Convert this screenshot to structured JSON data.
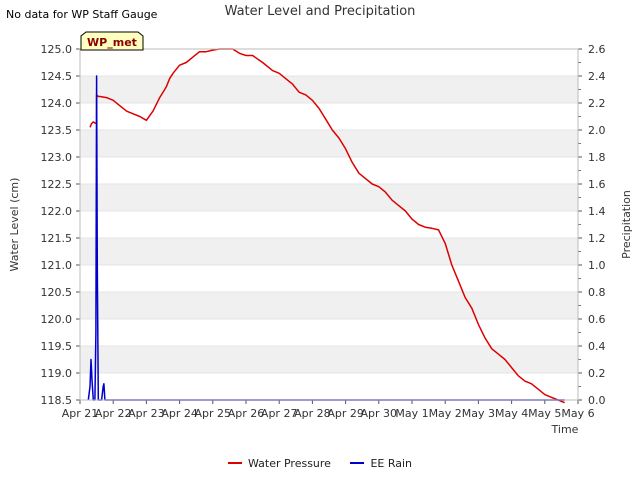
{
  "header": {
    "status_text": "No data for WP Staff Gauge"
  },
  "chart_data": {
    "type": "line",
    "title": "Water Level and Precipitation",
    "xlabel": "Time",
    "ylabel_left": "Water Level (cm)",
    "ylabel_right": "Precipitation",
    "ylim_left": [
      118.5,
      125.0
    ],
    "ylim_right": [
      0.0,
      2.6
    ],
    "x_ticks": [
      "Apr 21",
      "Apr 22",
      "Apr 23",
      "Apr 24",
      "Apr 25",
      "Apr 26",
      "Apr 27",
      "Apr 28",
      "Apr 29",
      "Apr 30",
      "May 1",
      "May 2",
      "May 3",
      "May 4",
      "May 5",
      "May 6"
    ],
    "y_ticks_left": [
      "118.5",
      "119.0",
      "119.5",
      "120.0",
      "120.5",
      "121.0",
      "121.5",
      "122.0",
      "122.5",
      "123.0",
      "123.5",
      "124.0",
      "124.5",
      "125.0"
    ],
    "y_ticks_right": [
      "0.0",
      "0.2",
      "0.4",
      "0.6",
      "0.8",
      "1.0",
      "1.2",
      "1.4",
      "1.6",
      "1.8",
      "2.0",
      "2.2",
      "2.4",
      "2.6"
    ],
    "grid": "horizontal bands",
    "annotation": "WP_met",
    "legend_position": "bottom-center",
    "colors": {
      "water_pressure": "#dd0000",
      "ee_rain": "#0000cc",
      "band": "#f0f0f0",
      "annotation_bg": "#ffffc0",
      "annotation_text": "#8b0000"
    },
    "series": [
      {
        "name": "Water Pressure",
        "axis": "left",
        "x": [
          0.3,
          0.35,
          0.4,
          0.45,
          0.5,
          0.5,
          0.55,
          0.6,
          0.8,
          1.0,
          1.2,
          1.4,
          1.6,
          1.8,
          2.0,
          2.2,
          2.4,
          2.55,
          2.6,
          2.7,
          2.8,
          3.0,
          3.2,
          3.4,
          3.6,
          3.8,
          4.0,
          4.2,
          4.4,
          4.6,
          4.8,
          5.0,
          5.2,
          5.5,
          5.8,
          6.0,
          6.2,
          6.4,
          6.6,
          6.8,
          7.0,
          7.2,
          7.4,
          7.6,
          7.8,
          8.0,
          8.2,
          8.4,
          8.6,
          8.8,
          9.0,
          9.2,
          9.4,
          9.6,
          9.8,
          10.0,
          10.2,
          10.4,
          10.6,
          10.8,
          11.0,
          11.2,
          11.4,
          11.5,
          11.6,
          11.8,
          12.0,
          12.2,
          12.4,
          12.6,
          12.8,
          13.0,
          13.2,
          13.4,
          13.6,
          13.8,
          14.0,
          14.2,
          14.4,
          14.6
        ],
        "values": [
          123.55,
          123.62,
          123.65,
          123.63,
          123.62,
          124.15,
          124.12,
          124.12,
          124.1,
          124.05,
          123.95,
          123.85,
          123.8,
          123.75,
          123.68,
          123.85,
          124.1,
          124.25,
          124.3,
          124.45,
          124.55,
          124.7,
          124.75,
          124.85,
          124.95,
          124.95,
          124.98,
          125.0,
          125.0,
          125.0,
          124.92,
          124.88,
          124.88,
          124.75,
          124.6,
          124.55,
          124.45,
          124.35,
          124.2,
          124.15,
          124.05,
          123.9,
          123.7,
          123.5,
          123.35,
          123.15,
          122.9,
          122.7,
          122.6,
          122.5,
          122.45,
          122.35,
          122.2,
          122.1,
          122.0,
          121.85,
          121.75,
          121.7,
          121.68,
          121.65,
          121.4,
          121.0,
          120.7,
          120.55,
          120.4,
          120.2,
          119.9,
          119.65,
          119.45,
          119.35,
          119.25,
          119.1,
          118.95,
          118.85,
          118.8,
          118.7,
          118.6,
          118.55,
          118.5,
          118.45
        ]
      },
      {
        "name": "EE Rain",
        "axis": "right",
        "x": [
          0.25,
          0.3,
          0.33,
          0.36,
          0.4,
          0.45,
          0.48,
          0.5,
          0.52,
          0.55,
          0.6,
          0.65,
          0.7,
          0.72,
          0.75,
          0.8,
          0.9,
          2.0,
          4.0,
          6.0,
          8.0,
          10.0,
          12.0,
          14.0,
          14.6
        ],
        "values": [
          0.0,
          0.1,
          0.3,
          0.15,
          0.0,
          0.0,
          0.5,
          2.4,
          1.0,
          0.0,
          0.0,
          0.0,
          0.1,
          0.12,
          0.0,
          0.0,
          0.0,
          0.0,
          0.0,
          0.0,
          0.0,
          0.0,
          0.0,
          0.0,
          0.0
        ]
      }
    ]
  }
}
